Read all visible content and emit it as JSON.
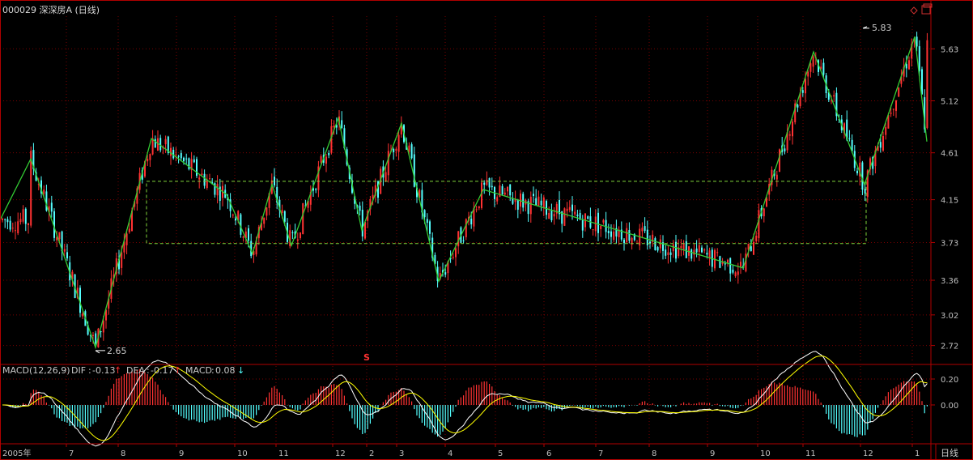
{
  "window": {
    "stock_title": "000029 深深房A (日线)",
    "period_tab": "日线"
  },
  "chart_data": [
    {
      "type": "candlestick",
      "title": "000029 深深房A (日线)",
      "y_ticks": [
        "5.63",
        "5.12",
        "4.61",
        "4.15",
        "3.73",
        "3.36",
        "3.02",
        "2.72"
      ],
      "ylim": [
        2.55,
        5.95
      ],
      "x_ticks": [
        "2005年",
        "7",
        "8",
        "9",
        "10",
        "11",
        "12",
        "2",
        "3",
        "4",
        "5",
        "6",
        "7",
        "8",
        "9",
        "10",
        "11",
        "12",
        "1"
      ],
      "annotations": [
        {
          "label": "5.83",
          "kind": "high"
        },
        {
          "label": "2.65",
          "kind": "low"
        }
      ],
      "zigzag": [
        3.95,
        4.55,
        2.7,
        4.75,
        4.2,
        3.62,
        4.3,
        3.7,
        4.95,
        3.85,
        4.9,
        3.35,
        4.25,
        3.48,
        5.6,
        4.3,
        5.75,
        4.72,
        5.65
      ],
      "consolidation_box": {
        "low": 3.72,
        "high": 4.33
      },
      "colors": {
        "up": "#ff3232",
        "down": "#54ffff",
        "zigzag": "#33cc33",
        "box": "#7fd23a",
        "grid": "#7a0000",
        "frame": "#b00000"
      }
    },
    {
      "type": "macd",
      "label": "MACD(12,26,9)",
      "dif": {
        "name": "DIF",
        "value": "-0.13",
        "arrow": "↑"
      },
      "dea": {
        "name": "DEA",
        "value": "-0.17",
        "arrow": "↑"
      },
      "macd": {
        "name": "MACD",
        "value": "0.08",
        "arrow": "↓"
      },
      "y_ticks": [
        "0.20",
        "0.00"
      ],
      "ylim": [
        -0.3,
        0.3
      ],
      "colors": {
        "dif": "#ffffff",
        "dea": "#ffff00",
        "label_macd": "#ff00ff",
        "up_arrow": "#ff3232",
        "down_arrow": "#54ffff"
      }
    }
  ]
}
